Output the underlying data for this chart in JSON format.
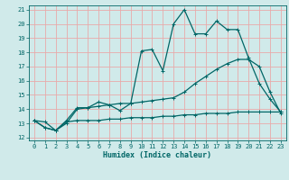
{
  "xlabel": "Humidex (Indice chaleur)",
  "xlim": [
    -0.5,
    23.5
  ],
  "ylim": [
    11.8,
    21.3
  ],
  "yticks": [
    12,
    13,
    14,
    15,
    16,
    17,
    18,
    19,
    20,
    21
  ],
  "xticks": [
    0,
    1,
    2,
    3,
    4,
    5,
    6,
    7,
    8,
    9,
    10,
    11,
    12,
    13,
    14,
    15,
    16,
    17,
    18,
    19,
    20,
    21,
    22,
    23
  ],
  "bg_color": "#d0eaea",
  "line_color": "#006666",
  "grid_color": "#e8aaaa",
  "line1_x": [
    0,
    1,
    2,
    3,
    4,
    5,
    6,
    7,
    8,
    9,
    10,
    11,
    12,
    13,
    14,
    15,
    16,
    17,
    18,
    19,
    20,
    21,
    22,
    23
  ],
  "line1_y": [
    13.2,
    12.7,
    12.5,
    13.2,
    14.1,
    14.1,
    14.5,
    14.3,
    13.9,
    14.4,
    18.1,
    18.2,
    16.7,
    20.0,
    21.0,
    19.3,
    19.3,
    20.2,
    19.6,
    19.6,
    17.6,
    15.8,
    14.7,
    13.8
  ],
  "line2_x": [
    0,
    1,
    2,
    3,
    4,
    5,
    6,
    7,
    8,
    9,
    10,
    11,
    12,
    13,
    14,
    15,
    16,
    17,
    18,
    19,
    20,
    21,
    22,
    23
  ],
  "line2_y": [
    13.2,
    12.7,
    12.5,
    13.0,
    14.0,
    14.1,
    14.2,
    14.3,
    14.4,
    14.4,
    14.5,
    14.6,
    14.7,
    14.8,
    15.2,
    15.8,
    16.3,
    16.8,
    17.2,
    17.5,
    17.5,
    17.0,
    15.2,
    13.7
  ],
  "line3_x": [
    0,
    1,
    2,
    3,
    4,
    5,
    6,
    7,
    8,
    9,
    10,
    11,
    12,
    13,
    14,
    15,
    16,
    17,
    18,
    19,
    20,
    21,
    22,
    23
  ],
  "line3_y": [
    13.2,
    13.1,
    12.5,
    13.1,
    13.2,
    13.2,
    13.2,
    13.3,
    13.3,
    13.4,
    13.4,
    13.4,
    13.5,
    13.5,
    13.6,
    13.6,
    13.7,
    13.7,
    13.7,
    13.8,
    13.8,
    13.8,
    13.8,
    13.8
  ]
}
